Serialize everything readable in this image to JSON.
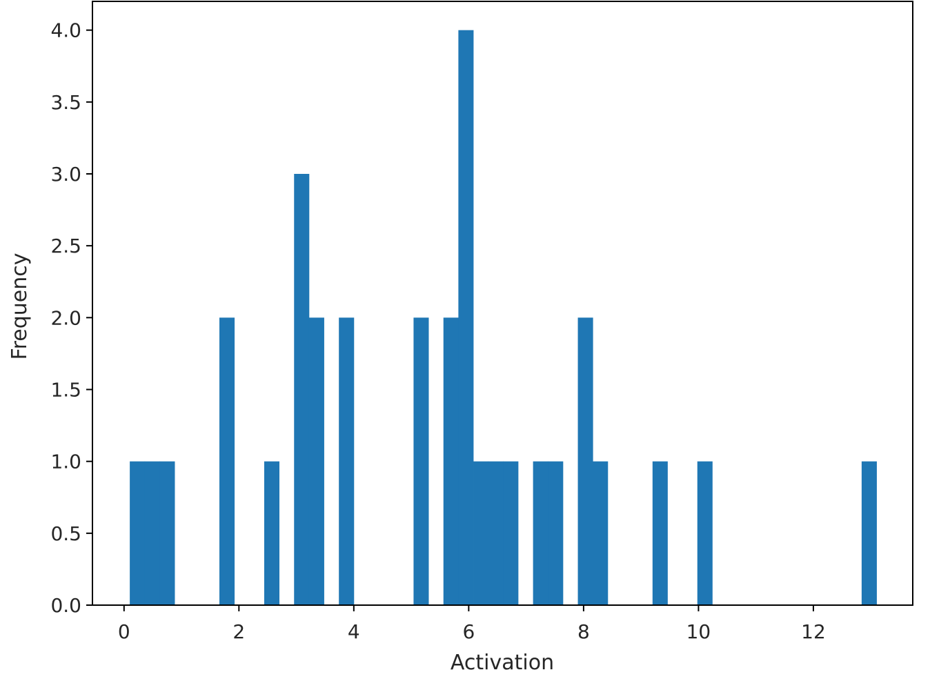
{
  "chart_data": {
    "type": "bar",
    "title": "",
    "xlabel": "Activation",
    "ylabel": "Frequency",
    "xlim": [
      -0.55,
      13.73
    ],
    "ylim": [
      0,
      4.2
    ],
    "bar_color": "#1f77b4",
    "grid": false,
    "legend": "none",
    "bin_width": 0.26,
    "x_ticks": [
      0,
      2,
      4,
      6,
      8,
      10,
      12
    ],
    "y_ticks": [
      "0.0",
      "0.5",
      "1.0",
      "1.5",
      "2.0",
      "2.5",
      "3.0",
      "3.5",
      "4.0"
    ],
    "bins": [
      {
        "x0": 0.1,
        "x1": 0.36,
        "count": 1
      },
      {
        "x0": 0.36,
        "x1": 0.62,
        "count": 1
      },
      {
        "x0": 0.62,
        "x1": 0.88,
        "count": 1
      },
      {
        "x0": 1.66,
        "x1": 1.92,
        "count": 2
      },
      {
        "x0": 2.44,
        "x1": 2.7,
        "count": 1
      },
      {
        "x0": 2.96,
        "x1": 3.22,
        "count": 3
      },
      {
        "x0": 3.22,
        "x1": 3.48,
        "count": 2
      },
      {
        "x0": 3.74,
        "x1": 4.0,
        "count": 2
      },
      {
        "x0": 5.04,
        "x1": 5.3,
        "count": 2
      },
      {
        "x0": 5.56,
        "x1": 5.82,
        "count": 2
      },
      {
        "x0": 5.82,
        "x1": 6.08,
        "count": 4
      },
      {
        "x0": 6.08,
        "x1": 6.34,
        "count": 1
      },
      {
        "x0": 6.34,
        "x1": 6.6,
        "count": 1
      },
      {
        "x0": 6.6,
        "x1": 6.86,
        "count": 1
      },
      {
        "x0": 7.12,
        "x1": 7.38,
        "count": 1
      },
      {
        "x0": 7.38,
        "x1": 7.64,
        "count": 1
      },
      {
        "x0": 7.9,
        "x1": 8.16,
        "count": 2
      },
      {
        "x0": 8.16,
        "x1": 8.42,
        "count": 1
      },
      {
        "x0": 9.2,
        "x1": 9.46,
        "count": 1
      },
      {
        "x0": 9.98,
        "x1": 10.24,
        "count": 1
      },
      {
        "x0": 12.84,
        "x1": 13.1,
        "count": 1
      }
    ]
  }
}
